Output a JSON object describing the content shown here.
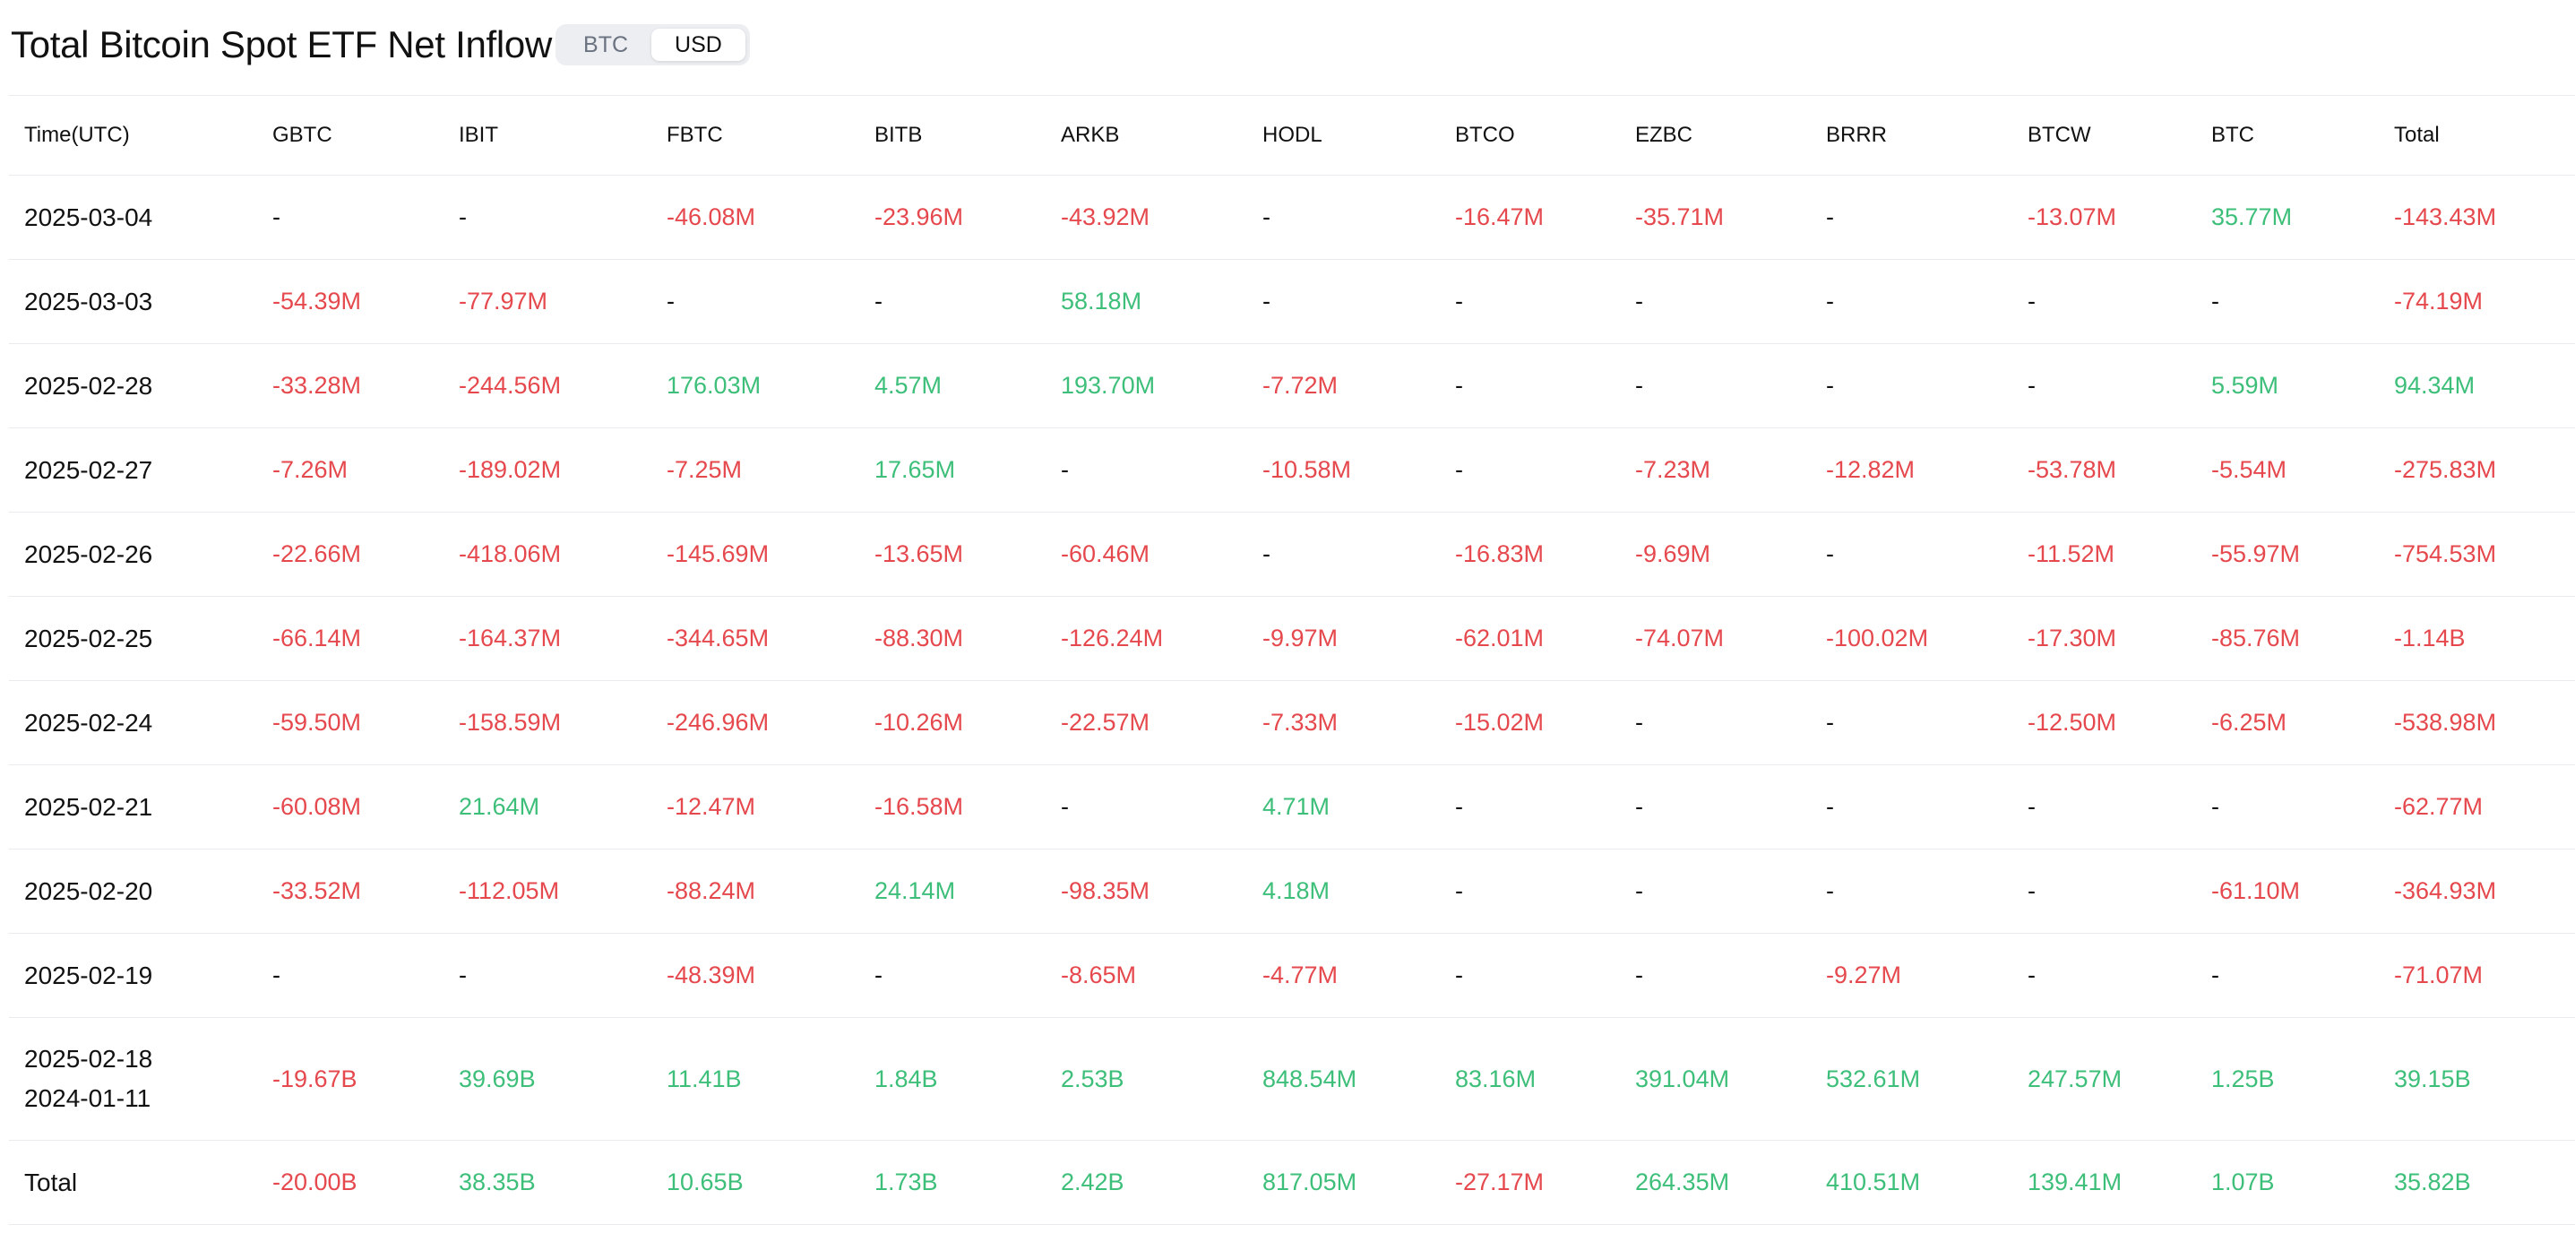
{
  "header": {
    "title": "Total Bitcoin Spot ETF Net Inflow",
    "toggle": {
      "options": [
        "BTC",
        "USD"
      ],
      "selected": "USD"
    }
  },
  "colors": {
    "negative": "#e5484d",
    "positive": "#3dbf7a",
    "neutral": "#111111"
  },
  "table": {
    "columns": [
      "Time(UTC)",
      "GBTC",
      "IBIT",
      "FBTC",
      "BITB",
      "ARKB",
      "HODL",
      "BTCO",
      "EZBC",
      "BRRR",
      "BTCW",
      "BTC",
      "Total"
    ],
    "rows": [
      {
        "time": [
          "2025-03-04"
        ],
        "cells": [
          "-",
          "-",
          "-46.08M",
          "-23.96M",
          "-43.92M",
          "-",
          "-16.47M",
          "-35.71M",
          "-",
          "-13.07M",
          "35.77M",
          "-143.43M"
        ]
      },
      {
        "time": [
          "2025-03-03"
        ],
        "cells": [
          "-54.39M",
          "-77.97M",
          "-",
          "-",
          "58.18M",
          "-",
          "-",
          "-",
          "-",
          "-",
          "-",
          "-74.19M"
        ]
      },
      {
        "time": [
          "2025-02-28"
        ],
        "cells": [
          "-33.28M",
          "-244.56M",
          "176.03M",
          "4.57M",
          "193.70M",
          "-7.72M",
          "-",
          "-",
          "-",
          "-",
          "5.59M",
          "94.34M"
        ]
      },
      {
        "time": [
          "2025-02-27"
        ],
        "cells": [
          "-7.26M",
          "-189.02M",
          "-7.25M",
          "17.65M",
          "-",
          "-10.58M",
          "-",
          "-7.23M",
          "-12.82M",
          "-53.78M",
          "-5.54M",
          "-275.83M"
        ]
      },
      {
        "time": [
          "2025-02-26"
        ],
        "cells": [
          "-22.66M",
          "-418.06M",
          "-145.69M",
          "-13.65M",
          "-60.46M",
          "-",
          "-16.83M",
          "-9.69M",
          "-",
          "-11.52M",
          "-55.97M",
          "-754.53M"
        ]
      },
      {
        "time": [
          "2025-02-25"
        ],
        "cells": [
          "-66.14M",
          "-164.37M",
          "-344.65M",
          "-88.30M",
          "-126.24M",
          "-9.97M",
          "-62.01M",
          "-74.07M",
          "-100.02M",
          "-17.30M",
          "-85.76M",
          "-1.14B"
        ]
      },
      {
        "time": [
          "2025-02-24"
        ],
        "cells": [
          "-59.50M",
          "-158.59M",
          "-246.96M",
          "-10.26M",
          "-22.57M",
          "-7.33M",
          "-15.02M",
          "-",
          "-",
          "-12.50M",
          "-6.25M",
          "-538.98M"
        ]
      },
      {
        "time": [
          "2025-02-21"
        ],
        "cells": [
          "-60.08M",
          "21.64M",
          "-12.47M",
          "-16.58M",
          "-",
          "4.71M",
          "-",
          "-",
          "-",
          "-",
          "-",
          "-62.77M"
        ]
      },
      {
        "time": [
          "2025-02-20"
        ],
        "cells": [
          "-33.52M",
          "-112.05M",
          "-88.24M",
          "24.14M",
          "-98.35M",
          "4.18M",
          "-",
          "-",
          "-",
          "-",
          "-61.10M",
          "-364.93M"
        ]
      },
      {
        "time": [
          "2025-02-19"
        ],
        "cells": [
          "-",
          "-",
          "-48.39M",
          "-",
          "-8.65M",
          "-4.77M",
          "-",
          "-",
          "-9.27M",
          "-",
          "-",
          "-71.07M"
        ]
      },
      {
        "time": [
          "2025-02-18",
          "2024-01-11"
        ],
        "cells": [
          "-19.67B",
          "39.69B",
          "11.41B",
          "1.84B",
          "2.53B",
          "848.54M",
          "83.16M",
          "391.04M",
          "532.61M",
          "247.57M",
          "1.25B",
          "39.15B"
        ]
      },
      {
        "time": [
          "Total"
        ],
        "cells": [
          "-20.00B",
          "38.35B",
          "10.65B",
          "1.73B",
          "2.42B",
          "817.05M",
          "-27.17M",
          "264.35M",
          "410.51M",
          "139.41M",
          "1.07B",
          "35.82B"
        ]
      }
    ]
  }
}
